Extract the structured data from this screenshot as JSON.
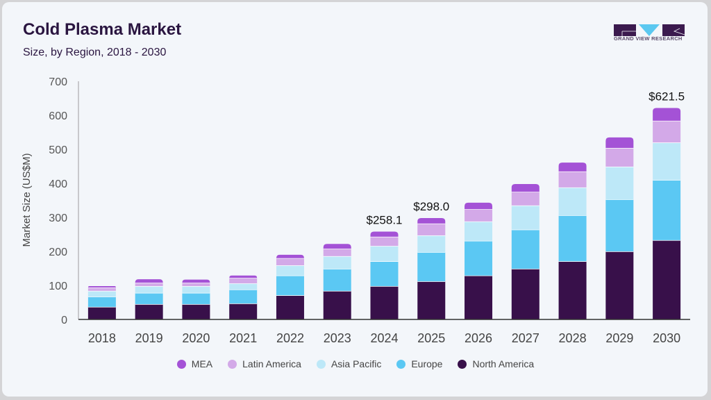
{
  "header": {
    "title": "Cold Plasma Market",
    "subtitle": "Size, by Region, 2018 - 2030"
  },
  "logo": {
    "text": "GRAND VIEW RESEARCH",
    "colors": {
      "dark": "#3b1a4e",
      "accent": "#5bc8f0"
    }
  },
  "chart_data": {
    "type": "bar",
    "stacked": true,
    "title": "Cold Plasma Market",
    "subtitle": "Size, by Region, 2018 - 2030",
    "xlabel": "",
    "ylabel": "Market Size (US$M)",
    "ylim": [
      0,
      700
    ],
    "yticks": [
      0,
      100,
      200,
      300,
      400,
      500,
      600,
      700
    ],
    "grid": false,
    "legend_position": "bottom",
    "categories": [
      "2018",
      "2019",
      "2020",
      "2021",
      "2022",
      "2023",
      "2024",
      "2025",
      "2026",
      "2027",
      "2028",
      "2029",
      "2030"
    ],
    "series": [
      {
        "name": "North America",
        "color": "#38104a",
        "values": [
          37,
          45,
          45,
          47,
          71,
          84,
          98,
          112,
          129,
          149,
          171,
          200,
          233
        ]
      },
      {
        "name": "Europe",
        "color": "#5bc8f3",
        "values": [
          30,
          33,
          33,
          41,
          58,
          65,
          73,
          86,
          102,
          115,
          135,
          153,
          177
        ]
      },
      {
        "name": "Asia Pacific",
        "color": "#bde8f8",
        "values": [
          17,
          20,
          20,
          18,
          30,
          37,
          45,
          49,
          57,
          71,
          82,
          96,
          110
        ]
      },
      {
        "name": "Latin America",
        "color": "#d3a9e8",
        "values": [
          10,
          10,
          10,
          16,
          21,
          22,
          27,
          35,
          36,
          40,
          47,
          55,
          64
        ]
      },
      {
        "name": "MEA",
        "color": "#a452d6",
        "values": [
          4,
          10,
          9,
          7,
          10,
          14,
          15.1,
          16,
          19,
          23,
          26,
          31,
          37.5
        ]
      }
    ],
    "annotations": [
      {
        "category": "2024",
        "text": "$258.1"
      },
      {
        "category": "2025",
        "text": "$298.0"
      },
      {
        "category": "2030",
        "text": "$621.5"
      }
    ],
    "legend_order": [
      "MEA",
      "Latin America",
      "Asia Pacific",
      "Europe",
      "North America"
    ]
  }
}
